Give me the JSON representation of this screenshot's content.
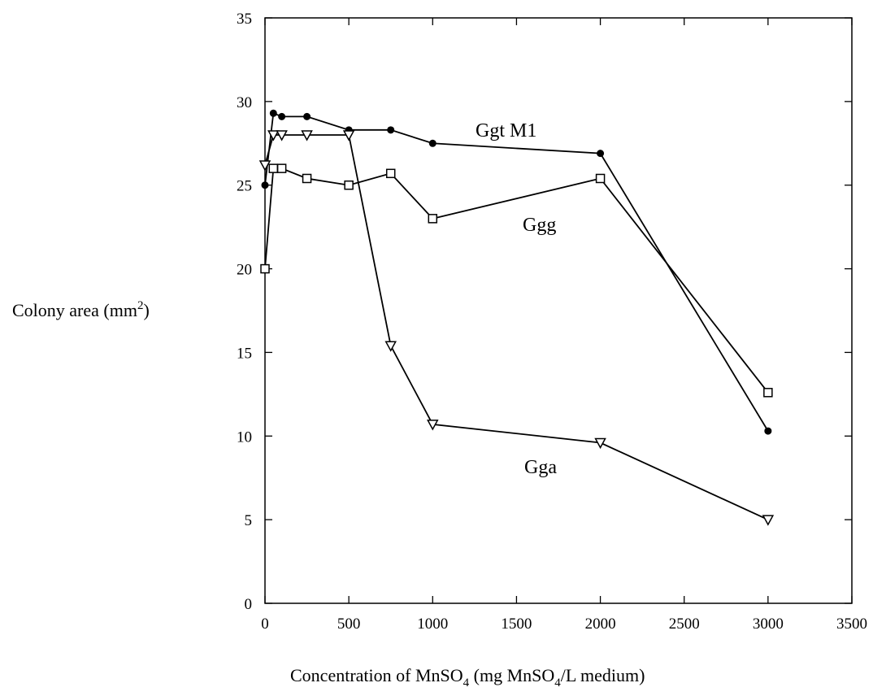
{
  "chart_data": {
    "type": "line",
    "xlabel_parts": [
      "Concentration of MnSO",
      "4",
      " (mg MnSO",
      "4",
      "/L medium)"
    ],
    "ylabel_parts": [
      "Colony area (mm",
      "2",
      ")"
    ],
    "xlim": [
      0,
      3500
    ],
    "ylim": [
      0,
      35
    ],
    "xticks": [
      "0",
      "500",
      "1000",
      "1500",
      "2000",
      "2500",
      "3000",
      "3500"
    ],
    "yticks": [
      "0",
      "5",
      "10",
      "15",
      "20",
      "25",
      "30",
      "35"
    ],
    "grid": false,
    "legend": "none",
    "series": [
      {
        "name": "Ggt M1",
        "marker": "filled-circle",
        "x": [
          0,
          50,
          100,
          250,
          500,
          750,
          1000,
          2000,
          3000
        ],
        "y": [
          25.0,
          29.3,
          29.1,
          29.1,
          28.3,
          28.3,
          27.5,
          26.9,
          10.3
        ]
      },
      {
        "name": "Ggg",
        "marker": "open-square",
        "x": [
          0,
          50,
          100,
          250,
          500,
          750,
          1000,
          2000,
          3000
        ],
        "y": [
          20.0,
          26.0,
          26.0,
          25.4,
          25.0,
          25.7,
          23.0,
          25.4,
          12.6
        ]
      },
      {
        "name": "Gga",
        "marker": "open-triangle-down",
        "x": [
          0,
          50,
          100,
          250,
          500,
          750,
          1000,
          2000,
          3000
        ],
        "y": [
          26.2,
          28.0,
          28.0,
          28.0,
          28.0,
          15.4,
          10.7,
          9.6,
          5.0
        ]
      }
    ]
  }
}
